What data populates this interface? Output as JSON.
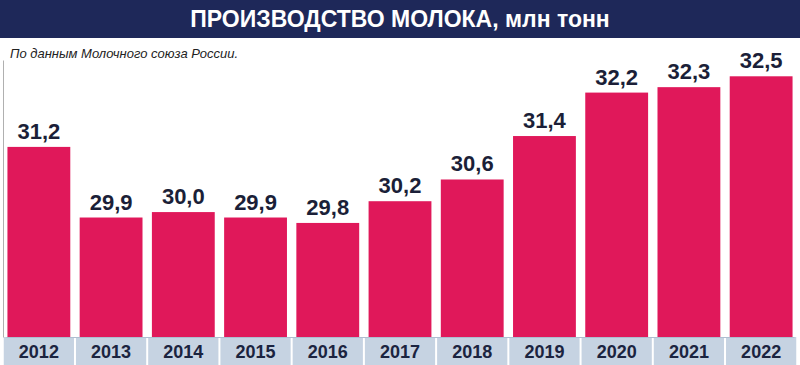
{
  "chart_data": {
    "type": "bar",
    "title": "ПРОИЗВОДСТВО МОЛОКА, млн тонн",
    "subtitle": "По данным Молочного союза России.",
    "categories": [
      "2012",
      "2013",
      "2014",
      "2015",
      "2016",
      "2017",
      "2018",
      "2019",
      "2020",
      "2021",
      "2022"
    ],
    "values": [
      31.2,
      29.9,
      30.0,
      29.9,
      29.8,
      30.2,
      30.6,
      31.4,
      32.2,
      32.3,
      32.5
    ],
    "value_labels": [
      "31,2",
      "29,9",
      "30,0",
      "29,9",
      "29,8",
      "30,2",
      "30,6",
      "31,4",
      "32,2",
      "32,3",
      "32,5"
    ],
    "color": "#e0185a",
    "ylim": [
      27.7,
      32.8
    ],
    "yticks": [],
    "data_labels": true,
    "tick_labels": "x"
  }
}
